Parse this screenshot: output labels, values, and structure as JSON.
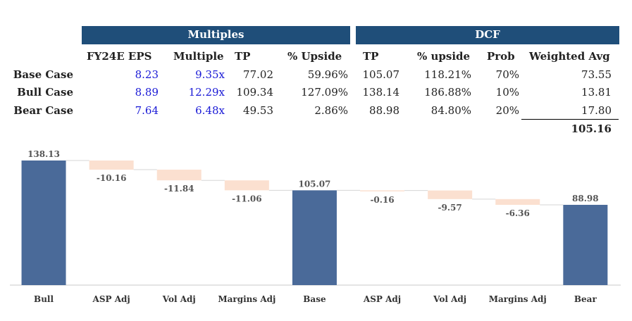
{
  "table": {
    "groups": {
      "multiples": "Multiples",
      "dcf": "DCF"
    },
    "columns": {
      "eps": "FY24E EPS",
      "multiple": "Multiple",
      "tp1": "TP",
      "upside1": "% Upside",
      "tp2": "TP",
      "upside2": "% upside",
      "prob": "Prob",
      "wavg": "Weighted Avg"
    },
    "rows": [
      {
        "label": "Base Case",
        "eps": "8.23",
        "multiple": "9.35x",
        "tp1": "77.02",
        "upside1": "59.96%",
        "tp2": "105.07",
        "upside2": "118.21%",
        "prob": "70%",
        "wavg": "73.55"
      },
      {
        "label": "Bull Case",
        "eps": "8.89",
        "multiple": "12.29x",
        "tp1": "109.34",
        "upside1": "127.09%",
        "tp2": "138.14",
        "upside2": "186.88%",
        "prob": "10%",
        "wavg": "13.81"
      },
      {
        "label": "Bear Case",
        "eps": "7.64",
        "multiple": "6.48x",
        "tp1": "49.53",
        "upside1": "2.86%",
        "tp2": "88.98",
        "upside2": "84.80%",
        "prob": "20%",
        "wavg": "17.80"
      }
    ],
    "total": "105.16"
  },
  "colors": {
    "header": "#1f4e79",
    "total_bar": "#4a6a99",
    "delta_bar": "#fbe0d0",
    "input_text": "#1a1ad6"
  },
  "chart_data": {
    "type": "waterfall",
    "categories": [
      "Bull",
      "ASP Adj",
      "Vol Adj",
      "Margins Adj",
      "Base",
      "ASP Adj",
      "Vol Adj",
      "Margins Adj",
      "Bear"
    ],
    "values": [
      138.13,
      -10.16,
      -11.84,
      -11.06,
      105.07,
      -0.16,
      -9.57,
      -6.36,
      88.98
    ],
    "labels": [
      "138.13",
      "-10.16",
      "-11.84",
      "-11.06",
      "105.07",
      "-0.16",
      "-9.57",
      "-6.36",
      "88.98"
    ],
    "is_total": [
      true,
      false,
      false,
      false,
      true,
      false,
      false,
      false,
      true
    ],
    "ylim": [
      0,
      140
    ],
    "title": "",
    "xlabel": "",
    "ylabel": ""
  }
}
